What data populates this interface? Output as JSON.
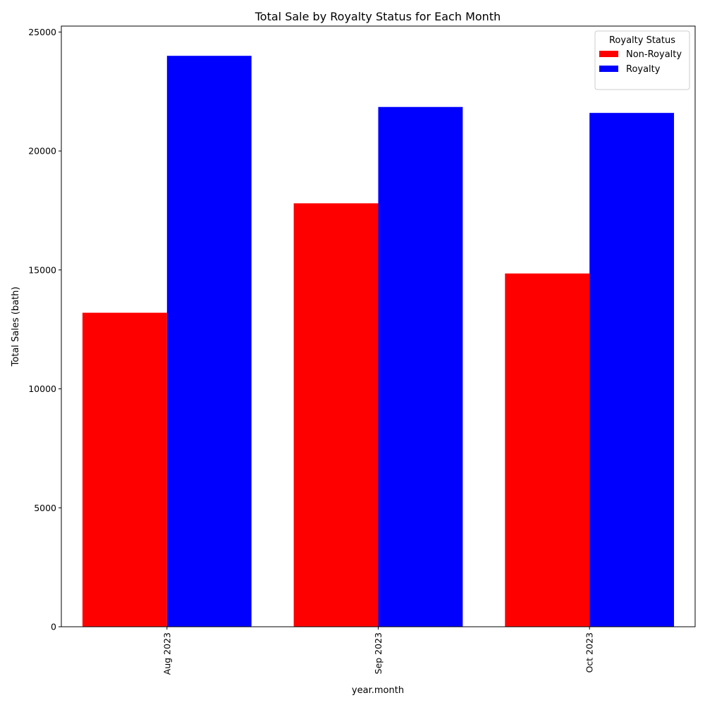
{
  "chart_data": {
    "type": "bar",
    "title": "Total Sale by Royalty Status for Each Month",
    "xlabel": "year.month",
    "ylabel": "Total Sales (bath)",
    "categories": [
      "Aug 2023",
      "Sep 2023",
      "Oct 2023"
    ],
    "series": [
      {
        "name": "Non-Royalty",
        "color": "#ff0000",
        "values": [
          13200,
          17800,
          14850
        ]
      },
      {
        "name": "Royalty",
        "color": "#0000ff",
        "values": [
          24000,
          21850,
          21600
        ]
      }
    ],
    "ylim": [
      0,
      25250
    ],
    "yticks": [
      0,
      5000,
      10000,
      15000,
      20000,
      25000
    ],
    "legend": {
      "title": "Royalty Status",
      "placement": "top-right"
    },
    "grid": false
  }
}
